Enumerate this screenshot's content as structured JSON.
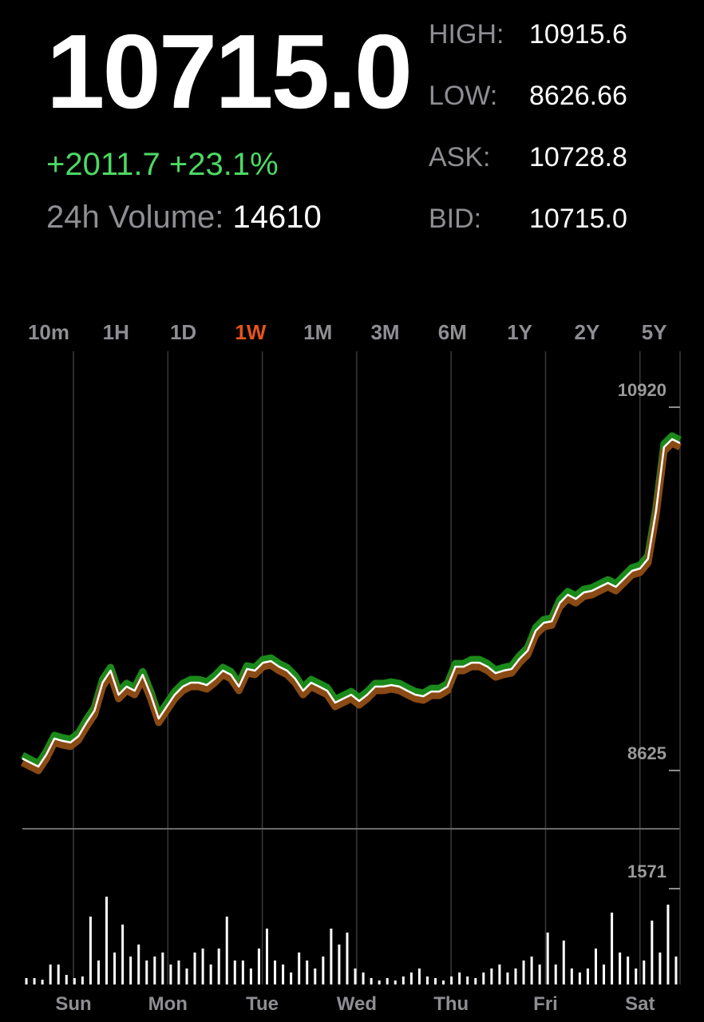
{
  "quote": {
    "price": "10715.0",
    "change": "+2011.7",
    "change_percent": "+23.1%",
    "volume_label": "24h Volume:",
    "volume": "14610"
  },
  "stats": [
    {
      "label": "HIGH:",
      "value": "10915.6"
    },
    {
      "label": "LOW:",
      "value": "8626.66"
    },
    {
      "label": "ASK:",
      "value": "10728.8"
    },
    {
      "label": "BID:",
      "value": "10715.0"
    }
  ],
  "tabs": {
    "items": [
      "10m",
      "1H",
      "1D",
      "1W",
      "1M",
      "3M",
      "6M",
      "1Y",
      "2Y",
      "5Y"
    ],
    "active": 3
  },
  "chart_data": [
    {
      "type": "line",
      "day_labels": [
        "Sun",
        "Mon",
        "Tue",
        "Wed",
        "Thu",
        "Fri",
        "Sat"
      ],
      "series": [
        {
          "color": "#ffffff",
          "values": [
            8701,
            8675,
            8650,
            8726,
            8827,
            8812,
            8802,
            8842,
            8928,
            9003,
            9180,
            9256,
            9104,
            9155,
            9129,
            9230,
            9104,
            8953,
            9029,
            9104,
            9155,
            9180,
            9180,
            9165,
            9205,
            9256,
            9230,
            9155,
            9266,
            9256,
            9306,
            9316,
            9281,
            9256,
            9205,
            9129,
            9180,
            9155,
            9129,
            9054,
            9079,
            9104,
            9064,
            9104,
            9155,
            9155,
            9165,
            9155,
            9129,
            9104,
            9094,
            9124,
            9124,
            9155,
            9281,
            9281,
            9306,
            9306,
            9281,
            9240,
            9256,
            9266,
            9331,
            9382,
            9508,
            9558,
            9568,
            9684,
            9735,
            9709,
            9750,
            9760,
            9785,
            9810,
            9785,
            9836,
            9886,
            9901,
            9962,
            10264,
            10668,
            10718,
            10693
          ]
        }
      ],
      "ylim": [
        8262,
        11273
      ],
      "yticks": [
        8625,
        10920
      ]
    },
    {
      "type": "bar",
      "color": "#ffffff",
      "values": [
        105,
        105,
        79,
        327,
        327,
        157,
        105,
        131,
        1113,
        393,
        1440,
        524,
        982,
        458,
        655,
        393,
        458,
        524,
        327,
        393,
        262,
        524,
        589,
        327,
        589,
        1113,
        393,
        393,
        262,
        589,
        916,
        393,
        327,
        196,
        524,
        393,
        262,
        458,
        916,
        655,
        851,
        262,
        196,
        105,
        65,
        105,
        65,
        131,
        196,
        262,
        131,
        105,
        65,
        131,
        196,
        131,
        105,
        196,
        262,
        327,
        196,
        262,
        393,
        458,
        327,
        851,
        327,
        720,
        262,
        196,
        262,
        589,
        327,
        1178,
        524,
        458,
        262,
        393,
        1047,
        524,
        1309,
        458
      ],
      "ylim": [
        0,
        2527
      ],
      "yticks": [
        1571
      ]
    }
  ]
}
